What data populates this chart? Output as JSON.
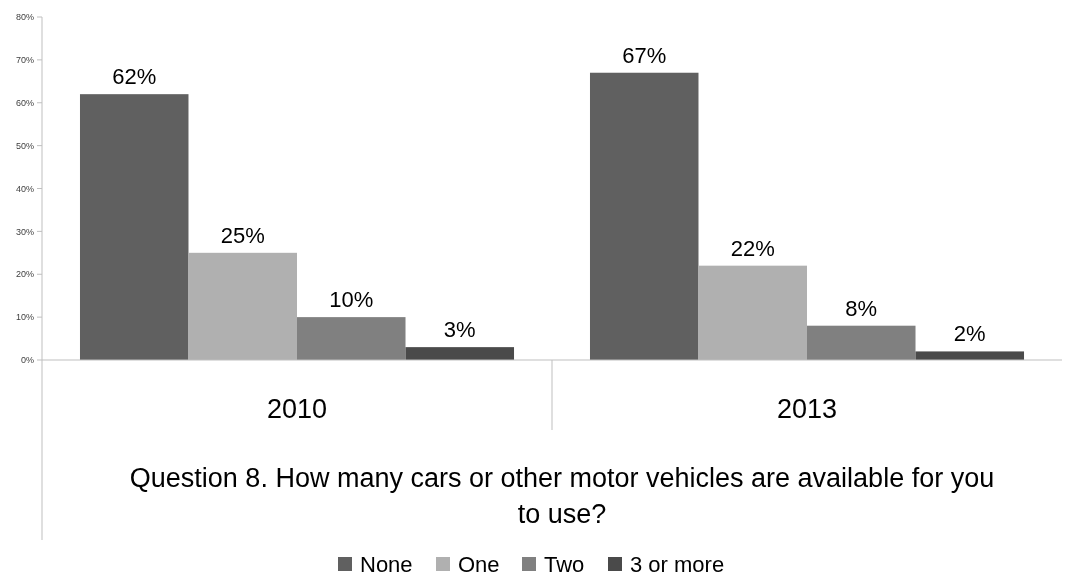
{
  "chart_data": {
    "type": "bar",
    "xlabel": "Question 8. How many cars or other motor vehicles are available for you to use?",
    "categories": [
      "2010",
      "2013"
    ],
    "series": [
      {
        "name": "None",
        "color": "#606060",
        "values": [
          62,
          67
        ],
        "value_labels": [
          "62%",
          "67%"
        ]
      },
      {
        "name": "One",
        "color": "#b0b0b0",
        "values": [
          25,
          22
        ],
        "value_labels": [
          "25%",
          "22%"
        ]
      },
      {
        "name": "Two",
        "color": "#808080",
        "values": [
          10,
          8
        ],
        "value_labels": [
          "10%",
          "8%"
        ]
      },
      {
        "name": "3 or more",
        "color": "#4a4a4a",
        "values": [
          3,
          2
        ],
        "value_labels": [
          "3%",
          "2%"
        ]
      }
    ],
    "ylim": [
      0,
      80
    ],
    "yticks": [
      {
        "value": 0,
        "label": "0%"
      },
      {
        "value": 10,
        "label": "10%"
      },
      {
        "value": 20,
        "label": "20%"
      },
      {
        "value": 30,
        "label": "30%"
      },
      {
        "value": 40,
        "label": "40%"
      },
      {
        "value": 50,
        "label": "50%"
      },
      {
        "value": 60,
        "label": "60%"
      },
      {
        "value": 70,
        "label": "70%"
      },
      {
        "value": 80,
        "label": "80%"
      }
    ],
    "grid": false,
    "legend": "bottom"
  }
}
